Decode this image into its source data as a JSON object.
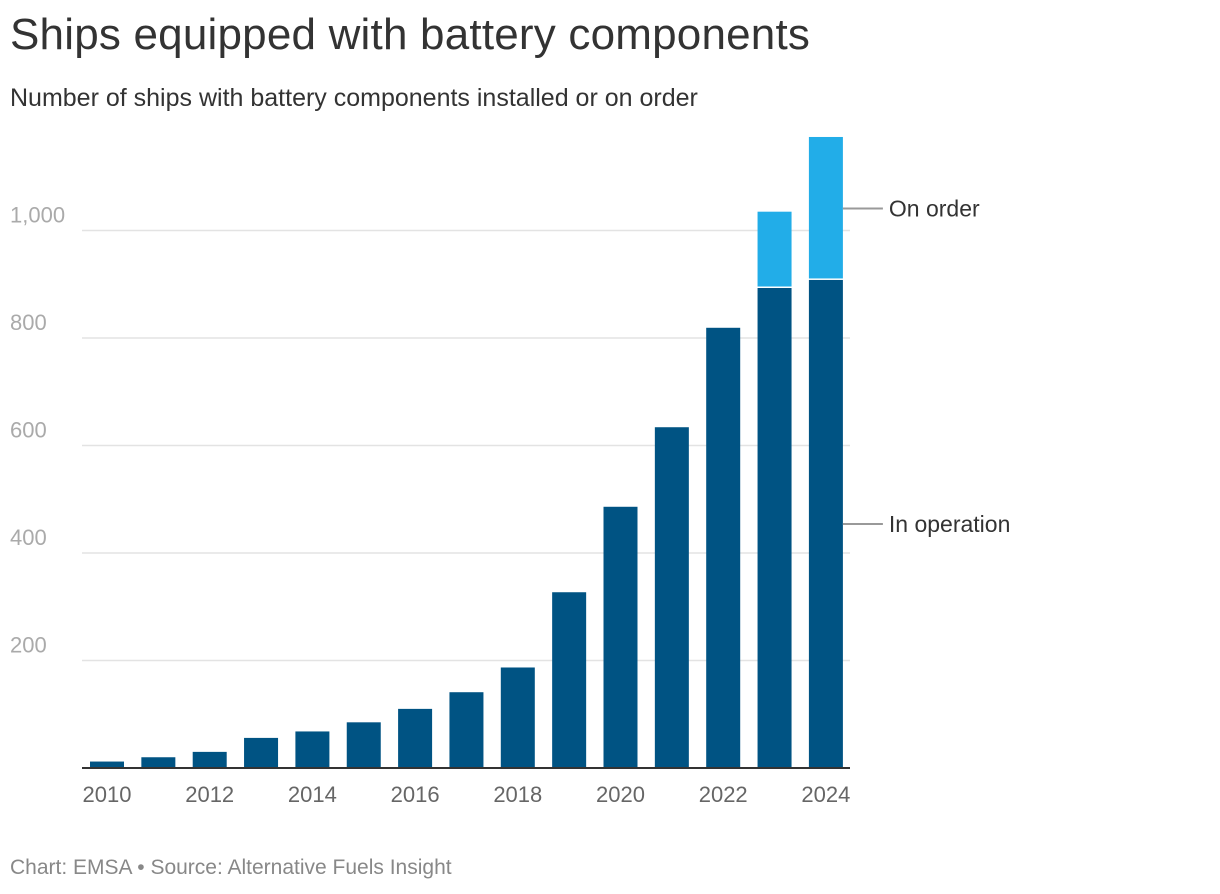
{
  "header": {
    "title": "Ships equipped with battery components",
    "subtitle": "Number of ships with battery components installed or on order"
  },
  "footer": {
    "chart_credit": "Chart: EMSA",
    "separator": "•",
    "source": "Source: Alternative Fuels Insight"
  },
  "colors": {
    "in_operation": "#005383",
    "on_order": "#22ade8",
    "gridline": "#e3e3e3",
    "axis": "#333333",
    "legend_line": "#999999"
  },
  "chart_data": {
    "type": "bar",
    "stacked": true,
    "title": "Ships equipped with battery components",
    "subtitle": "Number of ships with battery components installed or on order",
    "xlabel": "",
    "ylabel": "",
    "ylim": [
      0,
      1180
    ],
    "yticks": [
      "200",
      "400",
      "600",
      "800",
      "1,000"
    ],
    "ytick_values": [
      200,
      400,
      600,
      800,
      1000
    ],
    "categories": [
      2010,
      2011,
      2012,
      2013,
      2014,
      2015,
      2016,
      2017,
      2018,
      2019,
      2020,
      2021,
      2022,
      2023,
      2024
    ],
    "xtick_labels": [
      "2010",
      "2012",
      "2014",
      "2016",
      "2018",
      "2020",
      "2022",
      "2024"
    ],
    "xtick_values": [
      2010,
      2012,
      2014,
      2016,
      2018,
      2020,
      2022,
      2024
    ],
    "grid": true,
    "legend": "direct labels right",
    "series": [
      {
        "name": "In operation",
        "values": [
          12,
          20,
          30,
          56,
          68,
          85,
          110,
          141,
          187,
          327,
          486,
          634,
          819,
          893,
          908
        ]
      },
      {
        "name": "On order",
        "values": [
          0,
          0,
          0,
          0,
          0,
          0,
          0,
          0,
          0,
          0,
          0,
          0,
          0,
          142,
          266
        ]
      }
    ]
  }
}
